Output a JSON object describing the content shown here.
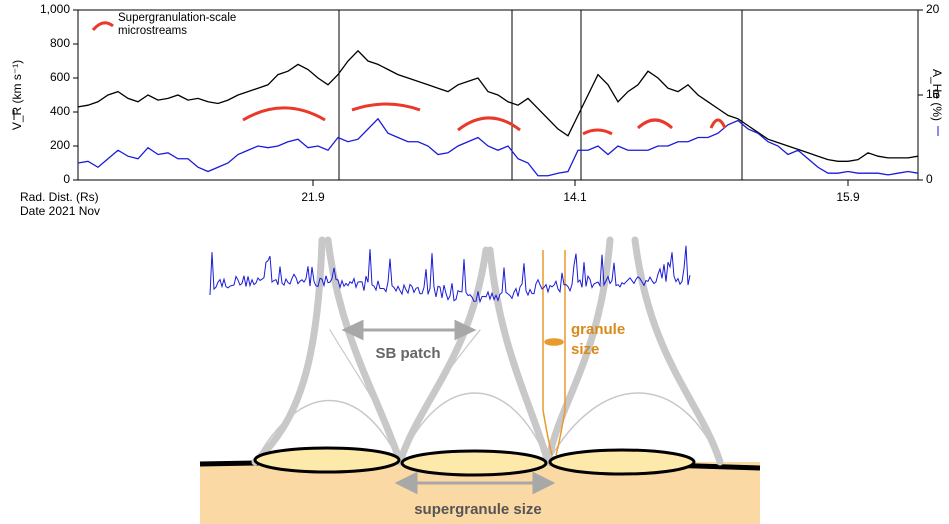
{
  "chart_data": {
    "type": "line",
    "y_label": "V_R (km s⁻¹)",
    "y2_label": "A_He (%)",
    "x_label": "Rad. Dist. (Rs)",
    "x_label2": "Date 2021 Nov",
    "xlim": [
      0,
      84
    ],
    "xticks": [
      {
        "value": 23.5,
        "label": "21.9"
      },
      {
        "value": 49.7,
        "label": "14.1"
      },
      {
        "value": 77,
        "label": "15.9"
      }
    ],
    "ylim": [
      0,
      1000
    ],
    "yticks": [
      0,
      200,
      400,
      600,
      800,
      {
        "value": 1000,
        "label": "1,000"
      }
    ],
    "y2lim": [
      0,
      20
    ],
    "y2ticks": [
      0,
      10,
      20
    ],
    "vlines": [
      26.1,
      43.4,
      50.3,
      66.4
    ],
    "series": [
      {
        "name": "V_R",
        "color": "#000000",
        "values": [
          430,
          440,
          460,
          500,
          520,
          480,
          460,
          500,
          470,
          480,
          500,
          470,
          480,
          460,
          450,
          470,
          500,
          520,
          540,
          560,
          620,
          640,
          680,
          650,
          600,
          560,
          620,
          700,
          760,
          700,
          680,
          650,
          620,
          600,
          580,
          560,
          540,
          520,
          560,
          580,
          600,
          520,
          500,
          460,
          440,
          480,
          420,
          360,
          300,
          260,
          380,
          500,
          620,
          560,
          460,
          520,
          560,
          640,
          600,
          540,
          520,
          560,
          500,
          460,
          420,
          380,
          360,
          320,
          280,
          240,
          220,
          200,
          180,
          160,
          140,
          120,
          110,
          110,
          120,
          160,
          140,
          130,
          130,
          130,
          140
        ]
      },
      {
        "name": "A_He",
        "color": "#1a1adb",
        "axis": "y2",
        "values": [
          2,
          2.2,
          1.5,
          2.5,
          3.5,
          2.8,
          2.5,
          3.8,
          3,
          3.2,
          2.5,
          2.5,
          1.5,
          1,
          1.5,
          2,
          3,
          3.5,
          4,
          3.8,
          4,
          4.5,
          4.8,
          3.8,
          4,
          3.5,
          5,
          4.5,
          4.8,
          6,
          7.2,
          5.5,
          5,
          4.5,
          4.5,
          4,
          3,
          3.2,
          4,
          4.5,
          5,
          4,
          3.5,
          4,
          2.5,
          2,
          0.5,
          0.5,
          0.8,
          1,
          3.5,
          3.5,
          4,
          3,
          4,
          3.5,
          3.5,
          3.5,
          4,
          4,
          4.5,
          4.5,
          5,
          5,
          5.5,
          6.5,
          7,
          6,
          5.5,
          4.5,
          4,
          3,
          3.5,
          2.5,
          1.5,
          0.8,
          0.8,
          1,
          0.8,
          0.8,
          0.8,
          0.6,
          0.8,
          1,
          0.8
        ]
      }
    ],
    "arcs": {
      "name": "Supergranulation-scale microstreams",
      "color": "#e8392b",
      "items": [
        {
          "x": [
            16.5,
            24.7
          ],
          "values": [
            353,
            424
          ]
        },
        {
          "x": [
            27.4,
            34.2
          ],
          "values": [
            412,
            447
          ]
        },
        {
          "x": [
            38,
            44.2
          ],
          "values": [
            294,
            365
          ]
        },
        {
          "x": [
            50.5,
            53.4
          ],
          "values": [
            271,
            294
          ]
        },
        {
          "x": [
            56,
            59.4
          ],
          "values": [
            306,
            353
          ]
        },
        {
          "x": [
            63.3,
            64.7
          ],
          "values": [
            306,
            353
          ]
        }
      ]
    }
  },
  "diagram": {
    "label_sb": "SB patch",
    "label_granule_1": "granule",
    "label_granule_2": "size",
    "label_supergranule": "supergranule size"
  }
}
